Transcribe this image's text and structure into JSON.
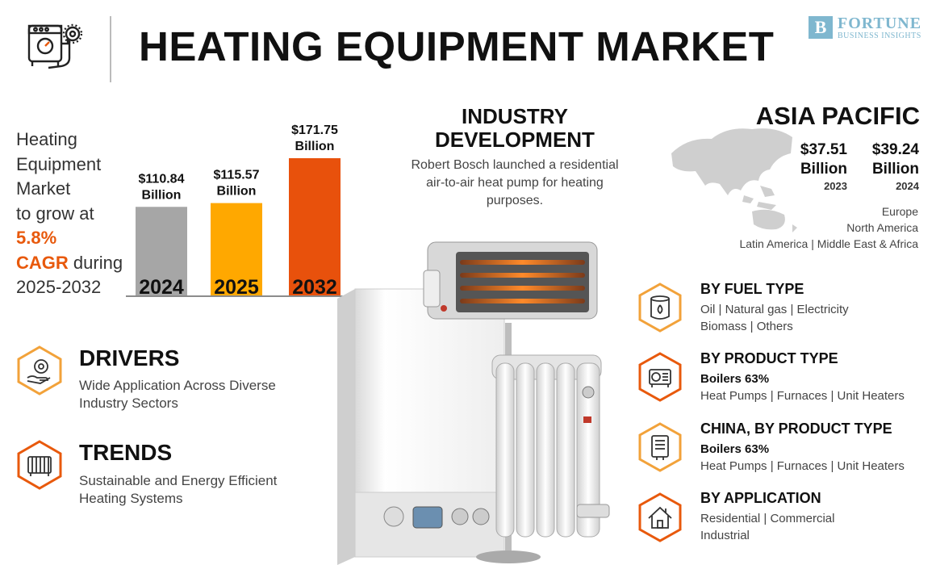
{
  "header": {
    "title": "HEATING EQUIPMENT MARKET",
    "brand_name": "FORTUNE",
    "brand_sub": "BUSINESS INSIGHTS",
    "brand_mark": "B"
  },
  "intro": {
    "line1": "Heating",
    "line2": "Equipment",
    "line3": "Market",
    "line4": "to grow at",
    "cagr_value": "5.8%",
    "cagr_label": "CAGR",
    "line6_suffix": " during",
    "period": "2025-2032"
  },
  "colors": {
    "accent": "#e8590c",
    "bar_2024": "#a6a6a6",
    "bar_2025": "#ffa800",
    "bar_2032": "#e8510c",
    "brand": "#7fb7cf"
  },
  "chart_data": {
    "type": "bar",
    "categories": [
      "2024",
      "2025",
      "2032"
    ],
    "values": [
      110.84,
      115.57,
      171.75
    ],
    "value_labels": [
      [
        "$110.84",
        "Billion"
      ],
      [
        "$115.57",
        "Billion"
      ],
      [
        "$171.75",
        "Billion"
      ]
    ],
    "colors": [
      "#a6a6a6",
      "#ffa800",
      "#e8510c"
    ],
    "ylim": [
      0,
      171.75
    ],
    "grid": false
  },
  "drivers": {
    "title": "DRIVERS",
    "text": "Wide Application Across Diverse Industry Sectors",
    "icon": "hand-gear-icon"
  },
  "trends": {
    "title": "TRENDS",
    "text": "Sustainable and Energy Efficient Heating Systems",
    "icon": "radiator-icon"
  },
  "industry_development": {
    "title_line1": "INDUSTRY",
    "title_line2": "DEVELOPMENT",
    "text": "Robert Bosch launched a residential air-to-air heat pump for heating purposes."
  },
  "asia_pacific": {
    "title": "ASIA PACIFIC",
    "values": [
      {
        "amount": "$37.51",
        "unit": "Billion",
        "year": "2023"
      },
      {
        "amount": "$39.24",
        "unit": "Billion",
        "year": "2024"
      }
    ],
    "regions": [
      "Europe",
      "North America",
      "Latin America  |  Middle East & Africa"
    ]
  },
  "segments": {
    "fuel": {
      "title": "BY FUEL TYPE",
      "line1": "Oil  |  Natural gas  |  Electricity",
      "line2": "Biomass  |  Others",
      "icon": "fuel-drum-icon"
    },
    "product": {
      "title": "BY PRODUCT TYPE",
      "line1": "Boilers 63%",
      "line2": "Heat Pumps  |  Furnaces  |  Unit Heaters",
      "icon": "heat-pump-icon"
    },
    "china": {
      "title": "CHINA, BY PRODUCT TYPE",
      "line1": "Boilers 63%",
      "line2": "Heat Pumps  |  Furnaces  |  Unit Heaters",
      "icon": "boiler-unit-icon"
    },
    "application": {
      "title": "BY APPLICATION",
      "line1": "Residential  |  Commercial",
      "line2": "Industrial",
      "icon": "house-icon"
    }
  }
}
